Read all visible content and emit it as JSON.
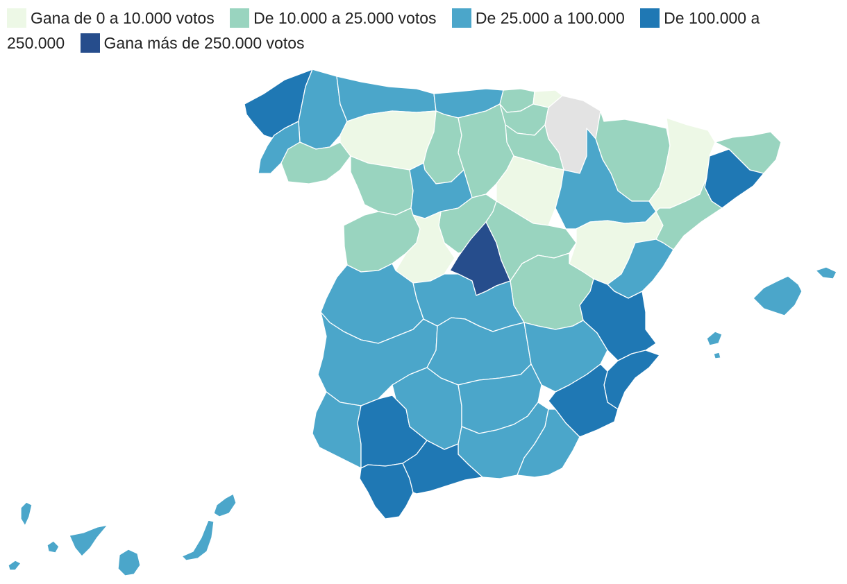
{
  "legend": {
    "items": [
      {
        "label": "Gana de 0 a 10.000 votos",
        "color": "#edf8e6"
      },
      {
        "label": "De 10.000 a 25.000 votos",
        "color": "#99d4bf"
      },
      {
        "label": "De 25.000 a 100.000",
        "color": "#4ba6ca"
      },
      {
        "label": "De 100.000 a 250.000",
        "color": "#1f78b4"
      },
      {
        "label": "Gana más de 250.000 votos",
        "color": "#264d8c"
      }
    ]
  },
  "map": {
    "no_data_color": "#e3e3e3",
    "region_categories": {
      "a-coruna": 3,
      "lugo": 2,
      "pontevedra": 2,
      "ourense": 1,
      "asturias": 2,
      "cantabria": 2,
      "bizkaia": 1,
      "gipuzkoa": 0,
      "alava": 1,
      "navarra": -1,
      "la-rioja": 1,
      "leon": 0,
      "palencia": 1,
      "burgos": 1,
      "soria": 0,
      "zamora": 1,
      "valladolid": 2,
      "segovia": 1,
      "salamanca": 1,
      "avila": 0,
      "madrid": 4,
      "guadalajara": 1,
      "huesca": 1,
      "zaragoza": 2,
      "teruel": 0,
      "lleida": 0,
      "girona": 1,
      "barcelona": 3,
      "tarragona": 1,
      "castellon": 2,
      "valencia": 3,
      "alicante": 3,
      "cuenca": 1,
      "caceres": 2,
      "badajoz": 2,
      "toledo": 2,
      "ciudad-real": 2,
      "albacete": 2,
      "murcia": 3,
      "huelva": 2,
      "sevilla": 3,
      "cordoba": 2,
      "jaen": 2,
      "granada": 2,
      "almeria": 2,
      "cadiz": 3,
      "malaga": 3,
      "mallorca": 2,
      "menorca": 2,
      "ibiza": 2,
      "formentera": 2,
      "canarias-lanzarote": 2,
      "canarias-fuerteventura": 2,
      "canarias-gran-canaria": 2,
      "canarias-tenerife": 2,
      "canarias-la-palma": 2,
      "canarias-la-gomera": 2,
      "canarias-el-hierro": 2
    }
  }
}
